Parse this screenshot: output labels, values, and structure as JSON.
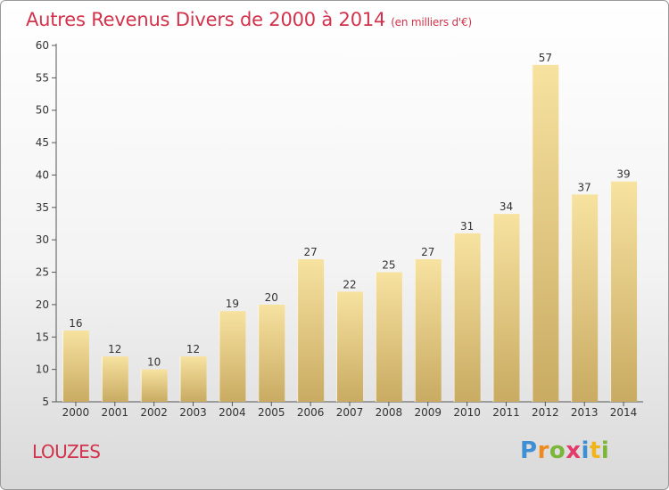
{
  "title": "Autres Revenus Divers de 2000 à 2014",
  "title_unit": "(en milliers d'€)",
  "place": "LOUZES",
  "logo": {
    "text": "Proxiti",
    "colors": [
      "#3f8fd4",
      "#f08a1d",
      "#7bb63a",
      "#e33a6b",
      "#3f8fd4",
      "#f0b51d",
      "#7bb63a"
    ]
  },
  "colors": {
    "title": "#d2334c",
    "bar_light": "#f7e2a0",
    "bar_dark": "#c9ab62",
    "axis": "#555555"
  },
  "chart_data": {
    "type": "bar",
    "categories": [
      "2000",
      "2001",
      "2002",
      "2003",
      "2004",
      "2005",
      "2006",
      "2007",
      "2008",
      "2009",
      "2010",
      "2011",
      "2012",
      "2013",
      "2014"
    ],
    "values": [
      16,
      12,
      10,
      12,
      19,
      20,
      27,
      22,
      25,
      27,
      31,
      34,
      57,
      37,
      39
    ],
    "ylim": [
      5,
      60
    ],
    "yticks": [
      5,
      10,
      15,
      20,
      25,
      30,
      35,
      40,
      45,
      50,
      55,
      60
    ],
    "grid": false,
    "data_labels": true
  }
}
